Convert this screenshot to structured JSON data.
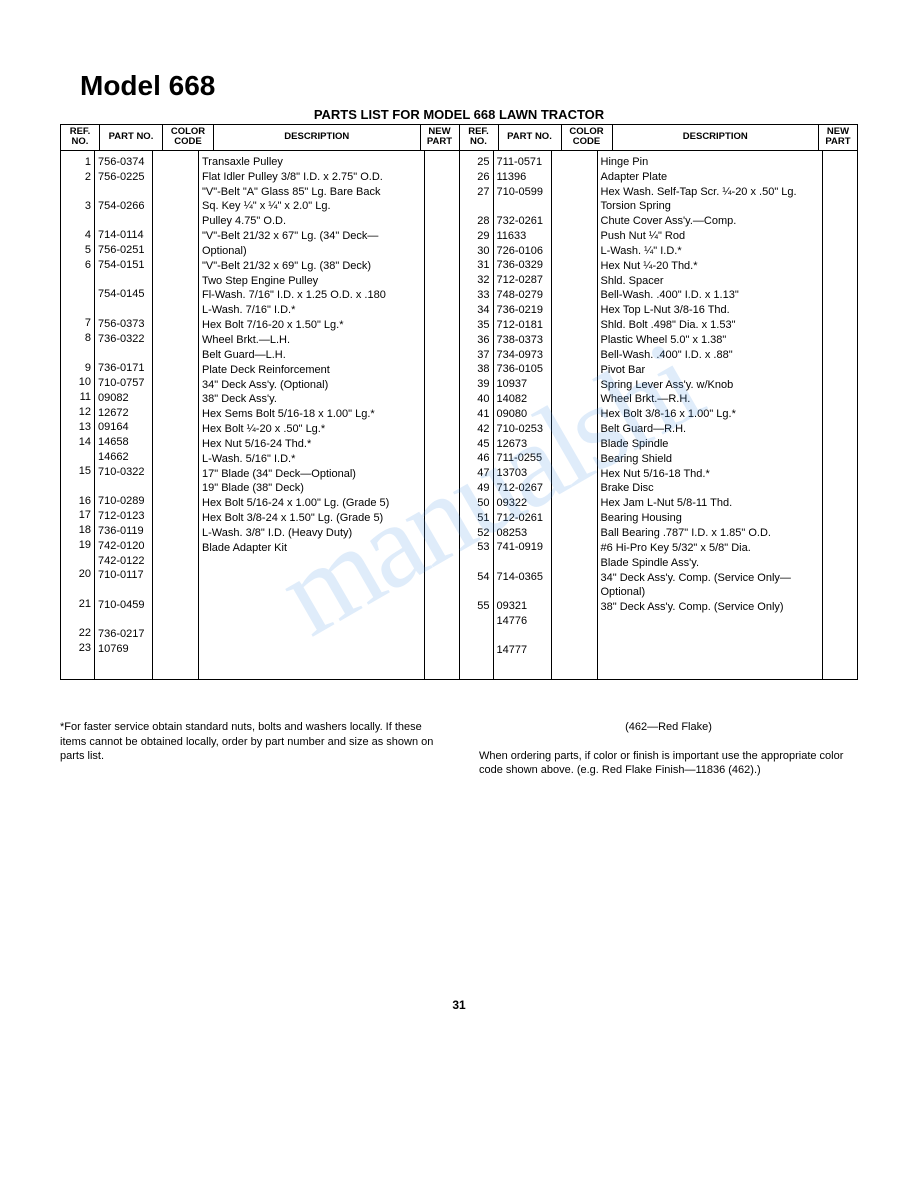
{
  "title": "Model 668",
  "subtitle": "PARTS LIST FOR MODEL 668 LAWN TRACTOR",
  "headers": {
    "ref": "REF.\nNO.",
    "part": "PART\nNO.",
    "color": "COLOR\nCODE",
    "desc": "DESCRIPTION",
    "new": "NEW\nPART"
  },
  "left_rows": [
    {
      "ref": "1",
      "part": "756-0374",
      "desc": "Transaxle Pulley"
    },
    {
      "ref": "2",
      "part": "756-0225",
      "desc": "Flat Idler Pulley 3/8\" I.D. x 2.75\" O.D."
    },
    {
      "ref": "3",
      "part": "754-0266",
      "desc": "\"V\"-Belt \"A\" Glass 85\" Lg. Bare Back"
    },
    {
      "ref": "4",
      "part": "714-0114",
      "desc": "Sq. Key ¼\" x ¼\" x 2.0\" Lg."
    },
    {
      "ref": "5",
      "part": "756-0251",
      "desc": "Pulley 4.75\" O.D."
    },
    {
      "ref": "6",
      "part": "754-0151",
      "desc": "\"V\"-Belt 21/32 x 67\" Lg. (34\" Deck—Optional)"
    },
    {
      "ref": "",
      "part": "754-0145",
      "desc": "\"V\"-Belt 21/32 x 69\" Lg. (38\" Deck)"
    },
    {
      "ref": "7",
      "part": "756-0373",
      "desc": "Two Step Engine Pulley"
    },
    {
      "ref": "8",
      "part": "736-0322",
      "desc": "Fl-Wash. 7/16\" I.D. x 1.25 O.D. x .180"
    },
    {
      "ref": "9",
      "part": "736-0171",
      "desc": "L-Wash. 7/16\" I.D.*"
    },
    {
      "ref": "10",
      "part": "710-0757",
      "desc": "Hex Bolt 7/16-20 x 1.50\" Lg.*"
    },
    {
      "ref": "11",
      "part": "09082",
      "desc": "Wheel Brkt.—L.H."
    },
    {
      "ref": "12",
      "part": "12672",
      "desc": "Belt Guard—L.H."
    },
    {
      "ref": "13",
      "part": "09164",
      "desc": "Plate Deck Reinforcement"
    },
    {
      "ref": "14",
      "part": "14658",
      "desc": "34\" Deck Ass'y. (Optional)"
    },
    {
      "ref": "",
      "part": "14662",
      "desc": "38\" Deck Ass'y."
    },
    {
      "ref": "15",
      "part": "710-0322",
      "desc": "Hex Sems Bolt 5/16-18 x 1.00\" Lg.*"
    },
    {
      "ref": "16",
      "part": "710-0289",
      "desc": "Hex Bolt ¼-20 x .50\" Lg.*"
    },
    {
      "ref": "17",
      "part": "712-0123",
      "desc": "Hex Nut 5/16-24 Thd.*"
    },
    {
      "ref": "18",
      "part": "736-0119",
      "desc": "L-Wash. 5/16\" I.D.*"
    },
    {
      "ref": "19",
      "part": "742-0120",
      "desc": "17\" Blade (34\" Deck—Optional)"
    },
    {
      "ref": "",
      "part": "742-0122",
      "desc": "19\" Blade (38\" Deck)"
    },
    {
      "ref": "20",
      "part": "710-0117",
      "desc": "Hex Bolt 5/16-24 x 1.00\" Lg. (Grade 5)"
    },
    {
      "ref": "21",
      "part": "710-0459",
      "desc": "Hex Bolt 3/8-24 x 1.50\" Lg. (Grade 5)"
    },
    {
      "ref": "22",
      "part": "736-0217",
      "desc": "L-Wash. 3/8\" I.D. (Heavy Duty)"
    },
    {
      "ref": "23",
      "part": "10769",
      "desc": "Blade Adapter Kit"
    }
  ],
  "right_rows": [
    {
      "ref": "25",
      "part": "711-0571",
      "desc": "Hinge Pin"
    },
    {
      "ref": "26",
      "part": "11396",
      "desc": "Adapter Plate"
    },
    {
      "ref": "27",
      "part": "710-0599",
      "desc": "Hex Wash. Self-Tap Scr. ¼-20 x .50\" Lg."
    },
    {
      "ref": "28",
      "part": "732-0261",
      "desc": "Torsion Spring"
    },
    {
      "ref": "29",
      "part": "11633",
      "desc": "Chute Cover Ass'y.—Comp."
    },
    {
      "ref": "30",
      "part": "726-0106",
      "desc": "Push Nut ¼\" Rod"
    },
    {
      "ref": "31",
      "part": "736-0329",
      "desc": "L-Wash. ¼\" I.D.*"
    },
    {
      "ref": "32",
      "part": "712-0287",
      "desc": "Hex Nut ¼-20 Thd.*"
    },
    {
      "ref": "33",
      "part": "748-0279",
      "desc": "Shld. Spacer"
    },
    {
      "ref": "34",
      "part": "736-0219",
      "desc": "Bell-Wash. .400\" I.D. x 1.13\""
    },
    {
      "ref": "35",
      "part": "712-0181",
      "desc": "Hex Top L-Nut 3/8-16 Thd."
    },
    {
      "ref": "36",
      "part": "738-0373",
      "desc": "Shld. Bolt .498\" Dia. x 1.53\""
    },
    {
      "ref": "37",
      "part": "734-0973",
      "desc": "Plastic Wheel 5.0\" x 1.38\""
    },
    {
      "ref": "38",
      "part": "736-0105",
      "desc": "Bell-Wash. .400\" I.D. x .88\""
    },
    {
      "ref": "39",
      "part": "10937",
      "desc": "Pivot Bar"
    },
    {
      "ref": "40",
      "part": "14082",
      "desc": "Spring Lever Ass'y. w/Knob"
    },
    {
      "ref": "41",
      "part": "09080",
      "desc": "Wheel Brkt.—R.H."
    },
    {
      "ref": "42",
      "part": "710-0253",
      "desc": "Hex Bolt 3/8-16 x 1.00\" Lg.*"
    },
    {
      "ref": "45",
      "part": "12673",
      "desc": "Belt Guard—R.H."
    },
    {
      "ref": "46",
      "part": "711-0255",
      "desc": "Blade Spindle"
    },
    {
      "ref": "47",
      "part": "13703",
      "desc": "Bearing Shield"
    },
    {
      "ref": "49",
      "part": "712-0267",
      "desc": "Hex Nut 5/16-18 Thd.*"
    },
    {
      "ref": "50",
      "part": "09322",
      "desc": "Brake Disc"
    },
    {
      "ref": "51",
      "part": "712-0261",
      "desc": "Hex Jam L-Nut 5/8-11 Thd."
    },
    {
      "ref": "52",
      "part": "08253",
      "desc": "Bearing Housing"
    },
    {
      "ref": "53",
      "part": "741-0919",
      "desc": "Ball Bearing .787\" I.D. x 1.85\" O.D."
    },
    {
      "ref": "54",
      "part": "714-0365",
      "desc": "#6 Hi-Pro Key 5/32\" x 5/8\" Dia."
    },
    {
      "ref": "55",
      "part": "09321",
      "desc": "Blade Spindle Ass'y."
    },
    {
      "ref": "",
      "part": "14776",
      "desc": "34\" Deck Ass'y. Comp. (Service Only—Optional)"
    },
    {
      "ref": "",
      "part": "14777",
      "desc": "38\" Deck Ass'y. Comp. (Service Only)"
    }
  ],
  "footnote_left": "*For faster service obtain standard nuts, bolts and washers locally. If these items cannot be obtained locally, order by part number and size as shown on parts list.",
  "color_note": "(462—Red Flake)",
  "footnote_right": "When ordering parts, if color or finish is important use the appropriate color code shown above. (e.g. Red Flake Finish—11836 (462).)",
  "page_number": "31",
  "watermark": "manualshi"
}
